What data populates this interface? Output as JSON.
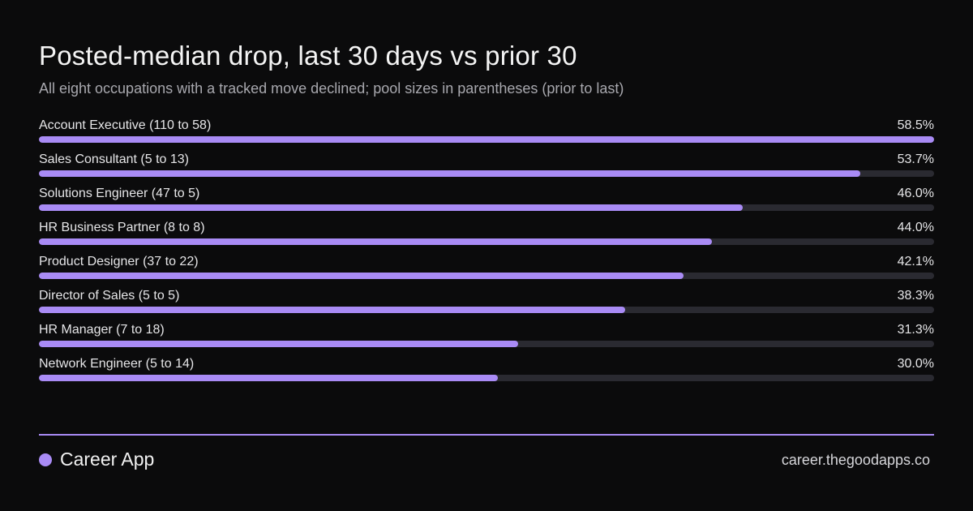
{
  "colors": {
    "accent": "#a98bf5",
    "track": "#2a2a31",
    "background": "#0b0b0c"
  },
  "header": {
    "title": "Posted-median drop, last 30 days vs prior 30",
    "subtitle": "All eight occupations with a tracked move declined; pool sizes in parentheses (prior to last)"
  },
  "chart_data": {
    "type": "bar",
    "orientation": "horizontal",
    "title": "Posted-median drop, last 30 days vs prior 30",
    "subtitle": "All eight occupations with a tracked move declined; pool sizes in parentheses (prior to last)",
    "categories": [
      "Account Executive (110 to 58)",
      "Sales Consultant (5 to 13)",
      "Solutions Engineer (47 to 5)",
      "HR Business Partner (8 to 8)",
      "Product Designer (37 to 22)",
      "Director of Sales (5 to 5)",
      "HR Manager (7 to 18)",
      "Network Engineer (5 to 14)"
    ],
    "values": [
      58.5,
      53.7,
      46.0,
      44.0,
      42.1,
      38.3,
      31.3,
      30.0
    ],
    "value_labels": [
      "58.5%",
      "53.7%",
      "46.0%",
      "44.0%",
      "42.1%",
      "38.3%",
      "31.3%",
      "30.0%"
    ],
    "xlim": [
      0,
      58.5
    ]
  },
  "footer": {
    "brand": "Career App",
    "url": "career.thegoodapps.co",
    "brand_icon": "dot-icon"
  }
}
